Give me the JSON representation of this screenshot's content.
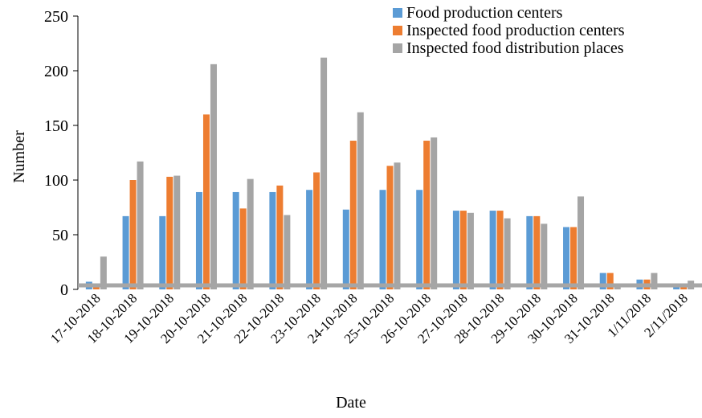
{
  "chart_data": {
    "type": "bar",
    "title": "",
    "xlabel": "Date",
    "ylabel": "Number",
    "ylim": [
      0,
      250
    ],
    "yticks": [
      0,
      50,
      100,
      150,
      200,
      250
    ],
    "grid": false,
    "legend_position": "top-right",
    "categories": [
      "17-10-2018",
      "18-10-2018",
      "19-10-2018",
      "20-10-2018",
      "21-10-2018",
      "22-10-2018",
      "23-10-2018",
      "24-10-2018",
      "25-10-2018",
      "26-10-2018",
      "27-10-2018",
      "28-10-2018",
      "29-10-2018",
      "30-10-2018",
      "31-10-2018",
      "1/11/2018",
      "2/11/2018"
    ],
    "series": [
      {
        "name": "Food production centers",
        "color": "#5B9BD5",
        "values": [
          7,
          67,
          67,
          89,
          89,
          89,
          91,
          73,
          91,
          91,
          72,
          72,
          67,
          57,
          15,
          9,
          5
        ]
      },
      {
        "name": "Inspected food production centers",
        "color": "#ED7D31",
        "values": [
          4,
          100,
          103,
          160,
          74,
          95,
          107,
          136,
          113,
          136,
          72,
          72,
          67,
          57,
          15,
          9,
          5
        ]
      },
      {
        "name": "Inspected food distribution places",
        "color": "#A5A5A5",
        "values": [
          30,
          117,
          104,
          206,
          101,
          68,
          212,
          162,
          116,
          139,
          70,
          65,
          60,
          85,
          5,
          15,
          8
        ]
      }
    ]
  }
}
